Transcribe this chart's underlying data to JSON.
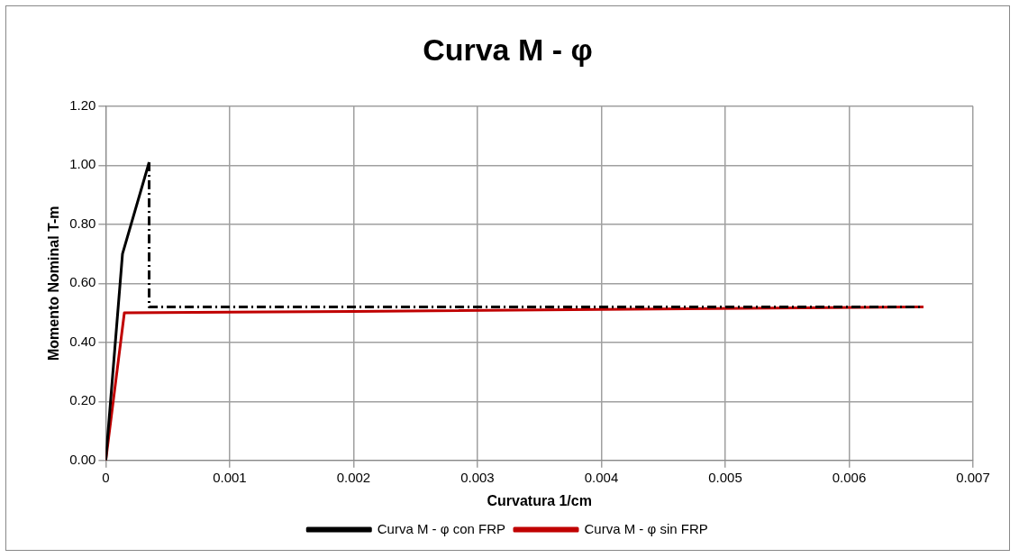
{
  "chart_data": {
    "type": "line",
    "title": "Curva M - φ",
    "xlabel": "Curvatura 1/cm",
    "ylabel": "Momento Nominal T-m",
    "xlim": [
      0,
      0.007
    ],
    "xticks": [
      {
        "value": 0,
        "label": "0"
      },
      0.001,
      0.002,
      0.003,
      0.004,
      0.005,
      0.006,
      0.007
    ],
    "ylim": [
      0,
      1.2
    ],
    "yticks": [
      {
        "value": 0,
        "label": "0.00"
      },
      {
        "value": 0.2,
        "label": "0.20"
      },
      {
        "value": 0.4,
        "label": "0.40"
      },
      {
        "value": 0.6,
        "label": "0.60"
      },
      {
        "value": 0.8,
        "label": "0.80"
      },
      {
        "value": 1,
        "label": "1.00"
      },
      {
        "value": 1.2,
        "label": "1.20"
      }
    ],
    "grid": true,
    "legend": "bottom",
    "marker": "none",
    "series": [
      {
        "name": "Curva M - φ con FRP",
        "color": "#000000",
        "line_style": "solid",
        "x": [
          0,
          0.000135,
          0.00035
        ],
        "values": [
          0,
          0.7,
          1.01
        ]
      },
      {
        "color": "#000000",
        "line_style": "dashed",
        "x": [
          0.00035,
          0.00035,
          0.0066
        ],
        "values": [
          1.01,
          0.52,
          0.52
        ]
      },
      {
        "name": "Curva M - φ sin FRP",
        "color": "#c00000",
        "line_style": "solid",
        "x": [
          0,
          0.00015,
          0.002,
          0.0066
        ],
        "values": [
          0,
          0.5,
          0.505,
          0.52
        ]
      }
    ]
  }
}
